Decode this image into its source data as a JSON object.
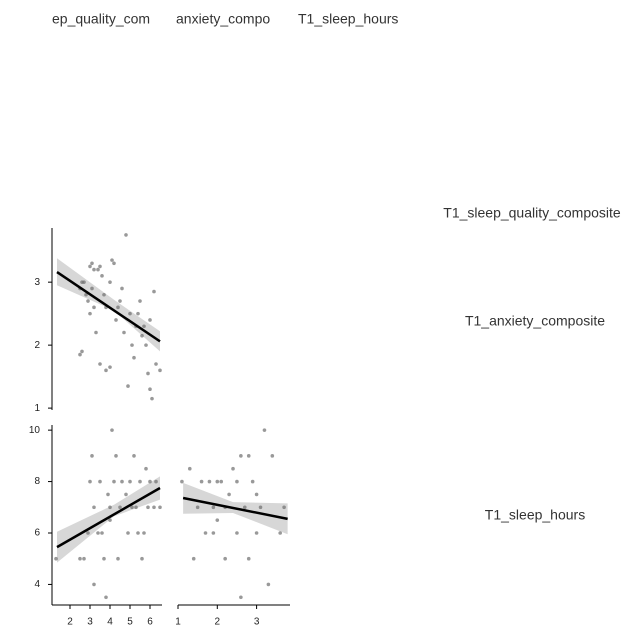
{
  "column_labels": [
    "ep_quality_com",
    "anxiety_compo",
    "T1_sleep_hours"
  ],
  "row_labels": [
    "T1_sleep_quality_composite",
    "T1_anxiety_composite",
    "T1_sleep_hours"
  ],
  "chart_data": [
    {
      "type": "scatter",
      "color": "#6e6e6e",
      "x": [
        2.5,
        2.6,
        2.7,
        2.8,
        2.9,
        3.0,
        3.1,
        3.2,
        3.4,
        3.5,
        3.6,
        3.2,
        3.0,
        2.6,
        2.5,
        3.3,
        3.5,
        3.7,
        3.8,
        4.0,
        4.1,
        4.2,
        4.3,
        4.5,
        4.6,
        4.8,
        4.7,
        5.0,
        5.1,
        5.2,
        5.3,
        5.5,
        5.6,
        5.8,
        5.9,
        6.0,
        6.1,
        6.2,
        6.3,
        6.5,
        4.0,
        3.8,
        4.9,
        5.4,
        5.7,
        3.1,
        4.4,
        6.0
      ],
      "values": [
        2.9,
        3.0,
        3.0,
        2.8,
        2.7,
        3.25,
        3.3,
        3.2,
        3.2,
        3.25,
        3.1,
        2.6,
        2.5,
        1.9,
        1.85,
        2.2,
        1.7,
        2.8,
        2.6,
        3.0,
        3.35,
        3.3,
        2.4,
        2.7,
        2.9,
        3.75,
        2.2,
        2.5,
        2.0,
        1.8,
        2.3,
        2.7,
        2.15,
        2.0,
        1.55,
        1.3,
        1.15,
        2.85,
        1.7,
        1.6,
        1.65,
        1.6,
        1.35,
        2.5,
        2.3,
        2.9,
        2.6,
        2.4
      ],
      "fit": {
        "x": [
          1.35,
          6.5
        ],
        "y": [
          3.16,
          2.06
        ]
      },
      "ci": {
        "x": [
          1.35,
          4.2,
          6.5
        ],
        "lower": [
          2.95,
          2.55,
          1.9
        ],
        "upper": [
          3.38,
          2.72,
          2.22
        ]
      },
      "xlim": [
        1.1,
        6.6
      ],
      "ylim": [
        0.97,
        3.86
      ],
      "yticks": [
        1,
        2,
        3
      ]
    },
    {
      "type": "scatter",
      "color": "#6e6e6e",
      "x": [
        1.3,
        2.5,
        2.7,
        2.9,
        3.0,
        3.1,
        3.2,
        3.4,
        3.5,
        3.6,
        3.7,
        3.8,
        3.2,
        4.0,
        4.1,
        4.2,
        4.3,
        4.4,
        4.5,
        4.6,
        4.8,
        4.9,
        5.0,
        5.1,
        5.2,
        5.3,
        5.5,
        5.6,
        5.8,
        5.9,
        6.0,
        6.2,
        6.3,
        6.5,
        4.0,
        5.4,
        3.9,
        5.7
      ],
      "values": [
        5,
        5,
        5,
        6,
        8,
        9,
        7,
        6,
        8,
        6,
        5,
        3.5,
        4,
        7,
        10,
        8,
        9,
        5,
        7,
        8,
        7.5,
        6,
        8,
        7,
        9,
        7,
        8,
        5,
        8.5,
        7,
        8,
        7,
        8,
        7,
        6.5,
        6,
        7.5,
        6
      ],
      "fit": {
        "x": [
          1.35,
          6.5
        ],
        "y": [
          5.45,
          7.75
        ]
      },
      "ci": {
        "x": [
          1.35,
          4.2,
          6.5
        ],
        "lower": [
          4.85,
          6.65,
          7.3
        ],
        "upper": [
          6.05,
          7.1,
          8.2
        ]
      },
      "xlim": [
        1.1,
        6.6
      ],
      "ylim": [
        3.2,
        10.2
      ],
      "xticks": [
        2,
        3,
        4,
        5,
        6
      ],
      "yticks": [
        4,
        6,
        8,
        10
      ]
    },
    {
      "type": "scatter",
      "color": "#6e6e6e",
      "x": [
        1.1,
        1.3,
        1.5,
        1.6,
        1.7,
        1.8,
        1.9,
        2.0,
        2.1,
        2.2,
        2.3,
        2.4,
        2.5,
        2.6,
        2.7,
        2.8,
        2.9,
        3.0,
        3.1,
        3.2,
        3.3,
        3.4,
        3.6,
        3.7,
        1.4,
        2.0,
        2.6,
        2.5,
        3.0,
        2.2,
        1.9,
        2.8
      ],
      "values": [
        8,
        8.5,
        7,
        8,
        6,
        8,
        7,
        6.5,
        8,
        5,
        7.5,
        8.5,
        6,
        9,
        7,
        5,
        8,
        6,
        7,
        10,
        4,
        9,
        6,
        7,
        5,
        8,
        3.5,
        8,
        7.5,
        7,
        6,
        9
      ],
      "fit": {
        "x": [
          1.13,
          3.79
        ],
        "y": [
          7.36,
          6.55
        ]
      },
      "ci": {
        "x": [
          1.13,
          2.4,
          3.79
        ],
        "lower": [
          6.75,
          6.78,
          5.95
        ],
        "upper": [
          7.95,
          7.2,
          7.15
        ]
      },
      "xlim": [
        1,
        3.85
      ],
      "ylim": [
        3.2,
        10.2
      ],
      "xticks": [
        1,
        2,
        3
      ]
    }
  ]
}
